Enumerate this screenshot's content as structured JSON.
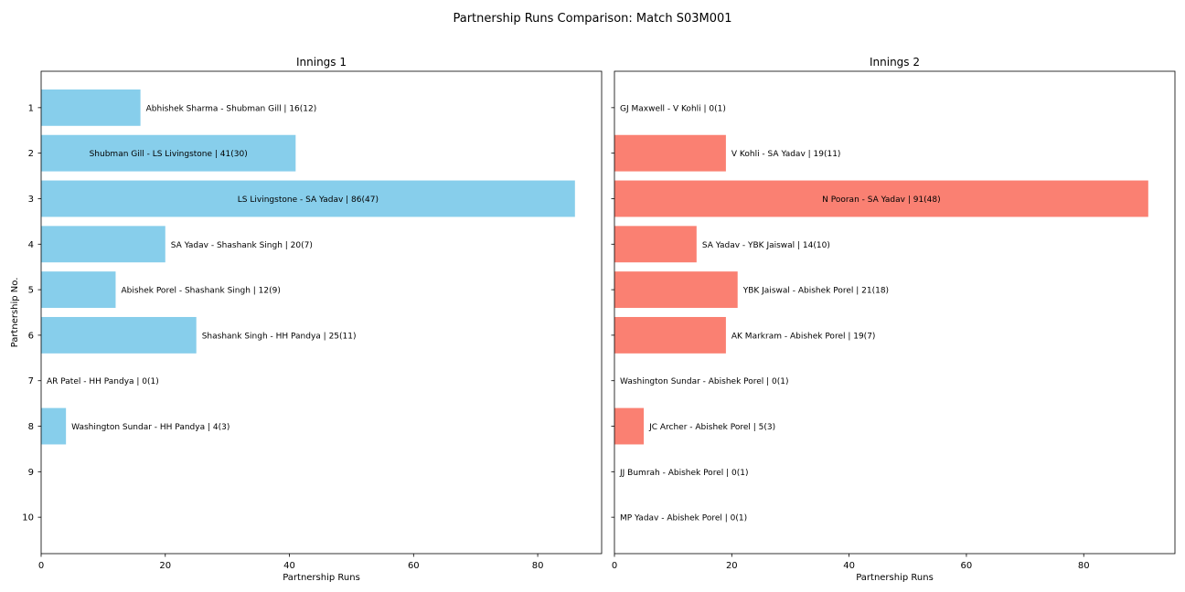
{
  "figure": {
    "title": "Partnership Runs Comparison: Match S03M001"
  },
  "chart_data": [
    {
      "type": "bar",
      "orientation": "horizontal",
      "title": "Innings 1",
      "xlabel": "Partnership Runs",
      "ylabel": "Partnership No.",
      "xlim": [
        0,
        90.3
      ],
      "xticks": [
        0,
        20,
        40,
        60,
        80
      ],
      "categories": [
        "1",
        "2",
        "3",
        "4",
        "5",
        "6",
        "7",
        "8",
        "9",
        "10"
      ],
      "values": [
        16,
        41,
        86,
        20,
        12,
        25,
        0,
        4,
        null,
        null
      ],
      "labels": [
        "Abhishek Sharma - Shubman Gill | 16(12)",
        "Shubman Gill - LS Livingstone | 41(30)",
        "LS Livingstone - SA Yadav | 86(47)",
        "SA Yadav - Shashank Singh | 20(7)",
        "Abishek Porel - Shashank Singh | 12(9)",
        "Shashank Singh - HH Pandya | 25(11)",
        "AR Patel - HH Pandya | 0(1)",
        "Washington Sundar - HH Pandya | 4(3)",
        null,
        null
      ],
      "color": "#87CEEB",
      "grid": false
    },
    {
      "type": "bar",
      "orientation": "horizontal",
      "title": "Innings 2",
      "xlabel": "Partnership Runs",
      "ylabel": "",
      "xlim": [
        0,
        95.55
      ],
      "xticks": [
        0,
        20,
        40,
        60,
        80
      ],
      "categories": [
        "1",
        "2",
        "3",
        "4",
        "5",
        "6",
        "7",
        "8",
        "9",
        "10"
      ],
      "values": [
        0,
        19,
        91,
        14,
        21,
        19,
        0,
        5,
        0,
        0
      ],
      "labels": [
        "GJ Maxwell - V Kohli | 0(1)",
        "V Kohli - SA Yadav | 19(11)",
        "N Pooran - SA Yadav | 91(48)",
        "SA Yadav - YBK Jaiswal | 14(10)",
        "YBK Jaiswal - Abishek Porel | 21(18)",
        "AK Markram - Abishek Porel | 19(7)",
        "Washington Sundar - Abishek Porel | 0(1)",
        "JC Archer - Abishek Porel | 5(3)",
        "JJ Bumrah - Abishek Porel | 0(1)",
        "MP Yadav - Abishek Porel | 0(1)"
      ],
      "color": "#FA8072",
      "grid": false
    }
  ]
}
